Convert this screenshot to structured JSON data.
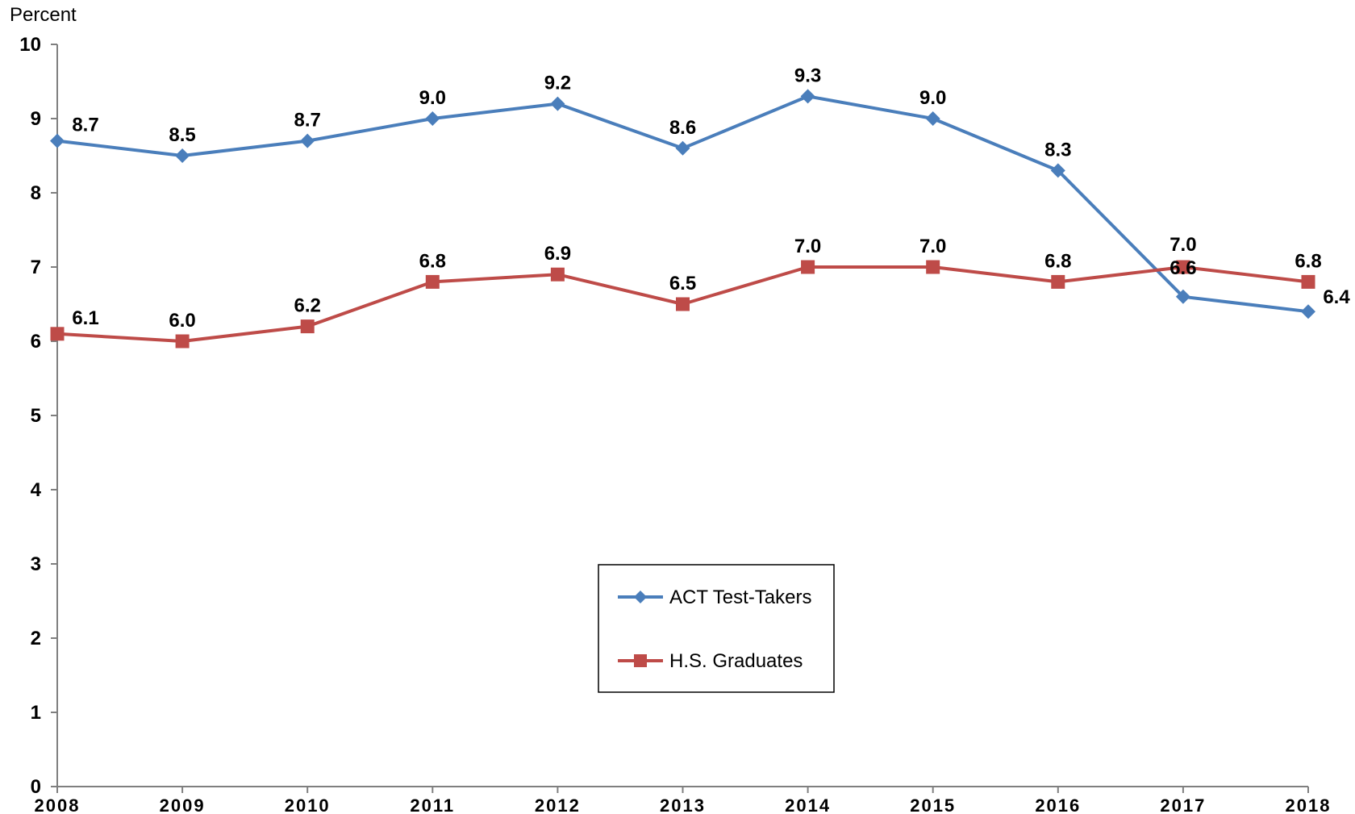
{
  "chart_data": {
    "type": "line",
    "title": "",
    "xlabel": "",
    "ylabel": "Percent",
    "ylim": [
      0,
      10
    ],
    "yticks": [
      0,
      1,
      2,
      3,
      4,
      5,
      6,
      7,
      8,
      9,
      10
    ],
    "categories": [
      "2008",
      "2009",
      "2010",
      "2011",
      "2012",
      "2013",
      "2014",
      "2015",
      "2016",
      "2017",
      "2018"
    ],
    "series": [
      {
        "name": "ACT Test-Takers",
        "color": "#4a7ebb",
        "marker": "diamond",
        "values": [
          8.7,
          8.5,
          8.7,
          9.0,
          9.2,
          8.6,
          9.3,
          9.0,
          8.3,
          6.6,
          6.4
        ],
        "labels": [
          "8.7",
          "8.5",
          "8.7",
          "9.0",
          "9.2",
          "8.6",
          "9.3",
          "9.0",
          "8.3",
          "6.6",
          "6.4"
        ]
      },
      {
        "name": "H.S. Graduates",
        "color": "#be4b48",
        "marker": "square",
        "values": [
          6.1,
          6.0,
          6.2,
          6.8,
          6.9,
          6.5,
          7.0,
          7.0,
          6.8,
          7.0,
          6.8
        ],
        "labels": [
          "6.1",
          "6.0",
          "6.2",
          "6.8",
          "6.9",
          "6.5",
          "7.0",
          "7.0",
          "6.8",
          "7.0",
          "6.8"
        ]
      }
    ],
    "grid": false,
    "legend_position": "center-bottom"
  }
}
